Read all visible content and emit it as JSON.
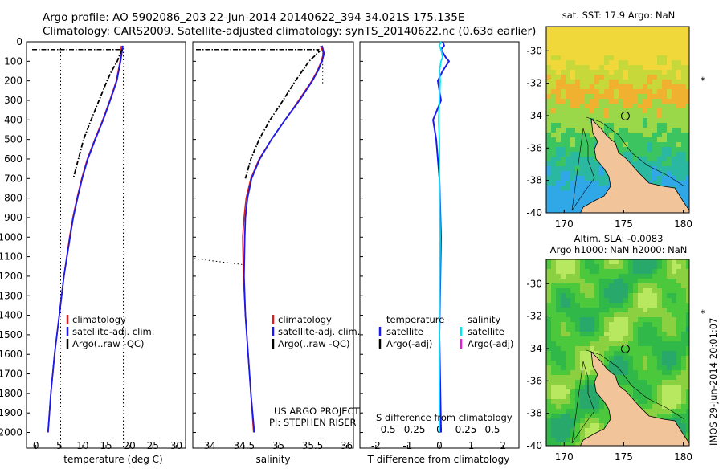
{
  "title": {
    "line1": "Argo profile: AO 5902086_203 22-Jun-2014 20140622_394 34.021S 175.135E",
    "line2": "Climatology: CARS2009. Satellite-adjusted climatology: synTS_20140622.nc (0.63d earlier)"
  },
  "colors": {
    "climatology": "#d42020",
    "satellite": "#1a1aee",
    "argo": "#000000",
    "satellite_salinity": "#00e8ee",
    "argo_adj_salinity": "#e020d0",
    "land": "#f2c49a"
  },
  "chart_data": [
    {
      "type": "line",
      "panel": "temperature",
      "xlabel": "temperature (deg C)",
      "ylabel": "",
      "xlim": [
        -2,
        32
      ],
      "ylim": [
        2080,
        0
      ],
      "xticks": [
        "0",
        "5",
        "10",
        "15",
        "20",
        "25",
        "30"
      ],
      "yticks": [
        "0",
        "100",
        "200",
        "300",
        "400",
        "500",
        "600",
        "700",
        "800",
        "900",
        "1000",
        "1100",
        "1200",
        "1300",
        "1400",
        "1500",
        "1600",
        "1700",
        "1800",
        "1900",
        "2000"
      ],
      "legend": [
        "climatology",
        "satellite-adj. clim.",
        "Argo(..raw -QC)"
      ],
      "legend_position": "lower-center",
      "series": [
        {
          "name": "climatology",
          "depth": [
            20,
            100,
            200,
            300,
            400,
            500,
            600,
            700,
            800,
            900,
            1000,
            1200,
            1400,
            1600,
            1800,
            2000
          ],
          "values": [
            18.3,
            18.0,
            17.2,
            15.8,
            14.3,
            12.6,
            11.0,
            9.8,
            8.8,
            7.9,
            7.2,
            6.0,
            5.0,
            4.0,
            3.2,
            2.6
          ]
        },
        {
          "name": "satellite-adj. clim.",
          "depth": [
            20,
            100,
            200,
            300,
            400,
            500,
            600,
            700,
            800,
            900,
            1000,
            1200,
            1400,
            1600,
            1800,
            2000
          ],
          "values": [
            18.6,
            18.1,
            17.3,
            15.9,
            14.4,
            12.7,
            11.1,
            9.9,
            8.9,
            8.0,
            7.3,
            6.0,
            5.0,
            4.0,
            3.2,
            2.6
          ]
        },
        {
          "name": "Argo(..raw -QC)",
          "depth": [
            40,
            50,
            100,
            150,
            200,
            300,
            400,
            500,
            600,
            700
          ],
          "values": [
            18.5,
            18.2,
            17.4,
            16.2,
            15.2,
            13.5,
            11.8,
            10.2,
            9.1,
            8.0
          ]
        }
      ],
      "reference_lines": [
        5.3,
        18.7
      ]
    },
    {
      "type": "line",
      "panel": "salinity",
      "xlabel": "salinity",
      "xlim": [
        33.75,
        36.1
      ],
      "ylim": [
        2080,
        0
      ],
      "xticks": [
        "34",
        "34.5",
        "35",
        "35.5",
        "36"
      ],
      "legend": [
        "climatology",
        "satellite-adj. clim.",
        "Argo(..raw -QC)"
      ],
      "legend_position": "lower-right",
      "annotation": [
        "US ARGO PROJECT",
        "PI: STEPHEN RISER"
      ],
      "series": [
        {
          "name": "climatology",
          "depth": [
            20,
            60,
            100,
            150,
            200,
            300,
            400,
            500,
            600,
            700,
            800,
            900,
            1000,
            1200,
            1400,
            1600,
            1800,
            2000
          ],
          "values": [
            35.62,
            35.66,
            35.63,
            35.57,
            35.49,
            35.3,
            35.1,
            34.9,
            34.72,
            34.6,
            34.53,
            34.5,
            34.48,
            34.49,
            34.52,
            34.56,
            34.6,
            34.64
          ]
        },
        {
          "name": "satellite-adj. clim.",
          "depth": [
            20,
            60,
            100,
            150,
            200,
            300,
            400,
            500,
            600,
            700,
            800,
            900,
            1000,
            1200,
            1400,
            1600,
            1800,
            2000
          ],
          "values": [
            35.64,
            35.67,
            35.64,
            35.58,
            35.5,
            35.31,
            35.1,
            34.9,
            34.73,
            34.61,
            34.55,
            34.52,
            34.51,
            34.5,
            34.52,
            34.56,
            34.6,
            34.65
          ]
        },
        {
          "name": "Argo(..raw -QC)",
          "depth": [
            40,
            50,
            100,
            150,
            200,
            300,
            400,
            500,
            600,
            700
          ],
          "values": [
            35.56,
            35.6,
            35.45,
            35.35,
            35.25,
            35.07,
            34.88,
            34.72,
            34.6,
            34.52
          ]
        }
      ]
    },
    {
      "type": "line",
      "panel": "difference",
      "xlabel": "T difference from climatology",
      "title_inner": "S difference from climatology",
      "xlim_T": [
        -2.5,
        2.5
      ],
      "xticks_T": [
        "-2",
        "-1",
        "0",
        "1",
        "2"
      ],
      "xticks_S": [
        "-0.5",
        "-0.25",
        "0",
        "0.25",
        "0.5"
      ],
      "legend_temperature": {
        "heading": "temperature",
        "items": [
          "satellite",
          "Argo(-adj)"
        ]
      },
      "legend_salinity": {
        "heading": "salinity",
        "items": [
          "satellite",
          "Argo(-adj)"
        ]
      },
      "series": [
        {
          "name": "temperature satellite",
          "depth": [
            0,
            20,
            40,
            80,
            100,
            150,
            200,
            300,
            400,
            500,
            700,
            1000,
            1500,
            2000
          ],
          "values": [
            0.1,
            0.15,
            0.05,
            0.2,
            0.3,
            0.1,
            -0.05,
            0.05,
            -0.2,
            -0.1,
            0.0,
            0.05,
            0.0,
            0.05
          ]
        },
        {
          "name": "salinity satellite",
          "depth": [
            0,
            20,
            40,
            80,
            100,
            150,
            200,
            300,
            400,
            500,
            700,
            1000,
            1500,
            2000
          ],
          "values": [
            0.01,
            0.0,
            0.01,
            0.02,
            0.01,
            0.0,
            0.005,
            0.0,
            -0.005,
            0.0,
            0.0,
            0.005,
            0.0,
            0.0
          ]
        }
      ]
    }
  ],
  "maps": [
    {
      "title": "sat. SST: 17.9 Argo: NaN",
      "xticks": [
        "170",
        "175",
        "180"
      ],
      "yticks": [
        "-30",
        "-32",
        "-34",
        "-36",
        "-38",
        "-40"
      ],
      "float_location": {
        "lon": 175.135,
        "lat": -34.021
      }
    },
    {
      "title_line1": "Altim. SLA: -0.0083",
      "title_line2": "Argo h1000: NaN h2000: NaN",
      "xticks": [
        "170",
        "175",
        "180"
      ],
      "yticks": [
        "-30",
        "-32",
        "-34",
        "-36",
        "-38",
        "-40"
      ],
      "float_location": {
        "lon": 175.135,
        "lat": -34.021
      },
      "side_label": "IMOS 29-Jun-2014 20:01:07"
    }
  ]
}
